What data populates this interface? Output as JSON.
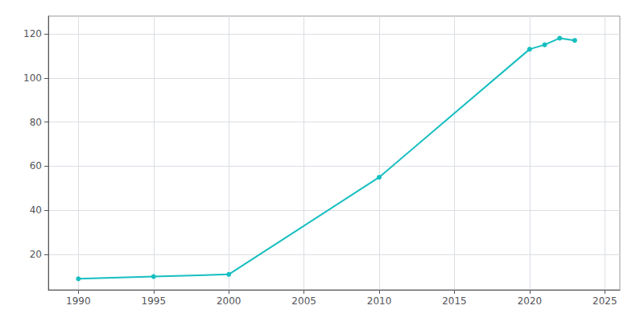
{
  "chart_data": {
    "type": "line",
    "x": [
      1990,
      1995,
      2000,
      2010,
      2020,
      2021,
      2022,
      2023
    ],
    "values": [
      9,
      10,
      11,
      55,
      113,
      115,
      118,
      117
    ],
    "color": "#17BEC0",
    "marker": "circle",
    "xlim": [
      1988,
      2026
    ],
    "ylim": [
      4,
      128
    ],
    "xticks": [
      1990,
      1995,
      2000,
      2005,
      2010,
      2015,
      2020,
      2025
    ],
    "yticks": [
      20,
      40,
      60,
      80,
      100,
      120
    ],
    "grid": true
  }
}
